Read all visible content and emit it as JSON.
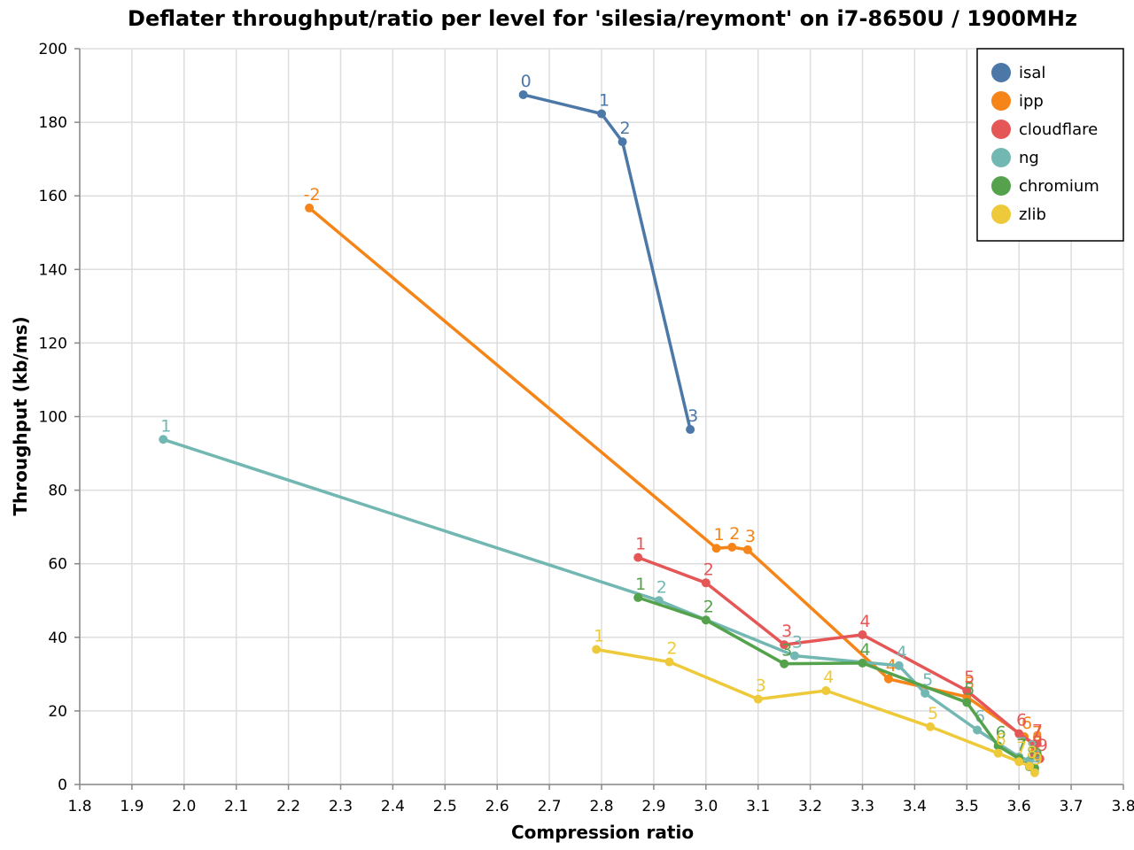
{
  "chart_data": {
    "type": "line",
    "title": "Deflater throughput/ratio per level for 'silesia/reymont' on i7-8650U / 1900MHz",
    "xlabel": "Compression ratio",
    "ylabel": "Throughput (kb/ms)",
    "xlim": [
      1.8,
      3.8
    ],
    "ylim": [
      0,
      200
    ],
    "x_ticks": [
      "1.8",
      "1.9",
      "2.0",
      "2.1",
      "2.2",
      "2.3",
      "2.4",
      "2.5",
      "2.6",
      "2.7",
      "2.8",
      "2.9",
      "3.0",
      "3.1",
      "3.2",
      "3.3",
      "3.4",
      "3.5",
      "3.6",
      "3.7",
      "3.8"
    ],
    "y_ticks": [
      "0",
      "20",
      "40",
      "60",
      "80",
      "100",
      "120",
      "140",
      "160",
      "180",
      "200"
    ],
    "grid": true,
    "legend_position": "top-right",
    "series": [
      {
        "name": "isal",
        "color": "#4c78a8",
        "points": [
          {
            "x": 2.65,
            "y": 187.5,
            "label": "0"
          },
          {
            "x": 2.8,
            "y": 182.3,
            "label": "1"
          },
          {
            "x": 2.84,
            "y": 174.7,
            "label": "2"
          },
          {
            "x": 2.97,
            "y": 96.5,
            "label": "3"
          }
        ]
      },
      {
        "name": "ipp",
        "color": "#f58518",
        "points": [
          {
            "x": 2.24,
            "y": 156.7,
            "label": "-2"
          },
          {
            "x": 3.02,
            "y": 64.2,
            "label": "1"
          },
          {
            "x": 3.05,
            "y": 64.5,
            "label": "2"
          },
          {
            "x": 3.08,
            "y": 63.8,
            "label": "3"
          },
          {
            "x": 3.35,
            "y": 28.7,
            "label": "4"
          },
          {
            "x": 3.5,
            "y": 23.8,
            "label": "5"
          },
          {
            "x": 3.61,
            "y": 13.0,
            "label": "6"
          },
          {
            "x": 3.63,
            "y": 10.5,
            "label": "7"
          },
          {
            "x": 3.63,
            "y": 9.0,
            "label": "8"
          },
          {
            "x": 3.63,
            "y": 8.5,
            "label": "9"
          }
        ]
      },
      {
        "name": "cloudflare",
        "color": "#e45756",
        "points": [
          {
            "x": 2.87,
            "y": 61.7,
            "label": "1"
          },
          {
            "x": 3.0,
            "y": 54.8,
            "label": "2"
          },
          {
            "x": 3.15,
            "y": 38.0,
            "label": "3"
          },
          {
            "x": 3.3,
            "y": 40.7,
            "label": "4"
          },
          {
            "x": 3.5,
            "y": 25.5,
            "label": "5"
          },
          {
            "x": 3.6,
            "y": 13.8,
            "label": "6"
          },
          {
            "x": 3.63,
            "y": 11.0,
            "label": "7"
          },
          {
            "x": 3.63,
            "y": 8.0,
            "label": "8"
          },
          {
            "x": 3.64,
            "y": 7.0,
            "label": "9"
          }
        ]
      },
      {
        "name": "ng",
        "color": "#72b7b2",
        "points": [
          {
            "x": 1.96,
            "y": 93.8,
            "label": "1"
          },
          {
            "x": 2.91,
            "y": 50.0,
            "label": "2"
          },
          {
            "x": 3.17,
            "y": 35.0,
            "label": "3"
          },
          {
            "x": 3.37,
            "y": 32.3,
            "label": "4"
          },
          {
            "x": 3.42,
            "y": 24.8,
            "label": "5"
          },
          {
            "x": 3.52,
            "y": 14.8,
            "label": "6"
          },
          {
            "x": 3.6,
            "y": 7.5,
            "label": "7"
          },
          {
            "x": 3.62,
            "y": 6.5,
            "label": "8"
          },
          {
            "x": 3.63,
            "y": 3.8,
            "label": "9"
          }
        ]
      },
      {
        "name": "chromium",
        "color": "#54a24b",
        "points": [
          {
            "x": 2.87,
            "y": 50.8,
            "label": "1"
          },
          {
            "x": 3.0,
            "y": 44.7,
            "label": "2"
          },
          {
            "x": 3.15,
            "y": 32.8,
            "label": "3"
          },
          {
            "x": 3.3,
            "y": 33.0,
            "label": "4"
          },
          {
            "x": 3.5,
            "y": 22.3,
            "label": "5"
          },
          {
            "x": 3.56,
            "y": 10.5,
            "label": "6"
          },
          {
            "x": 3.6,
            "y": 7.0,
            "label": "7"
          },
          {
            "x": 3.62,
            "y": 4.8,
            "label": "8"
          },
          {
            "x": 3.63,
            "y": 4.5,
            "label": "9"
          }
        ]
      },
      {
        "name": "zlib",
        "color": "#eeca3b",
        "points": [
          {
            "x": 2.79,
            "y": 36.7,
            "label": "1"
          },
          {
            "x": 2.93,
            "y": 33.3,
            "label": "2"
          },
          {
            "x": 3.1,
            "y": 23.2,
            "label": "3"
          },
          {
            "x": 3.23,
            "y": 25.5,
            "label": "4"
          },
          {
            "x": 3.43,
            "y": 15.7,
            "label": "5"
          },
          {
            "x": 3.56,
            "y": 8.5,
            "label": "6"
          },
          {
            "x": 3.6,
            "y": 6.2,
            "label": "7"
          },
          {
            "x": 3.62,
            "y": 5.0,
            "label": "8"
          },
          {
            "x": 3.63,
            "y": 3.2,
            "label": "9"
          }
        ]
      }
    ]
  }
}
